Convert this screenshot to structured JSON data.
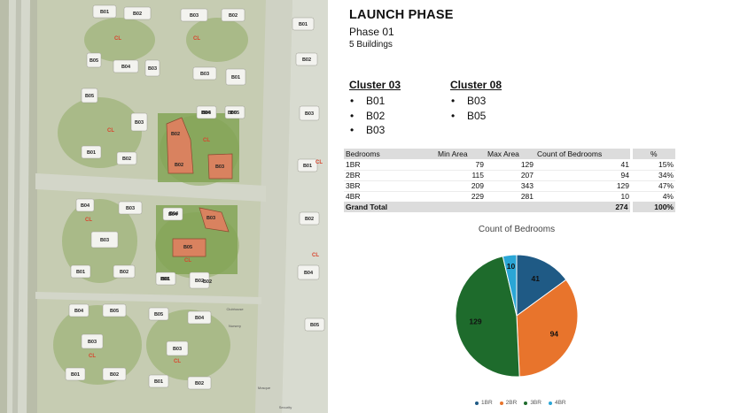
{
  "header": {
    "title": "LAUNCH PHASE",
    "phase": "Phase 01",
    "buildings": "5 Buildings"
  },
  "clusters": [
    {
      "name": "Cluster 03",
      "items": [
        "B01",
        "B02",
        "B03"
      ]
    },
    {
      "name": "Cluster 08",
      "items": [
        "B03",
        "B05"
      ]
    }
  ],
  "table": {
    "headers": [
      "Bedrooms",
      "Min Area",
      "Max Area",
      "Count of Bedrooms",
      "%"
    ],
    "rows": [
      [
        "1BR",
        "79",
        "129",
        "41",
        "15%"
      ],
      [
        "2BR",
        "115",
        "207",
        "94",
        "34%"
      ],
      [
        "3BR",
        "209",
        "343",
        "129",
        "47%"
      ],
      [
        "4BR",
        "229",
        "281",
        "10",
        "4%"
      ]
    ],
    "total": [
      "Grand Total",
      "",
      "",
      "274",
      "100%"
    ]
  },
  "map": {
    "labels": {
      "b01": "B01",
      "b02": "B02",
      "b03": "B03",
      "b04": "B04",
      "b05": "B05",
      "cl": "CL",
      "clubhouse": "Clubhouse",
      "nursery": "Nursery",
      "mosque": "Mosque",
      "security": "Security"
    }
  },
  "colors": {
    "1BR": "#1f5a85",
    "2BR": "#e8742c",
    "3BR": "#1e6b2c",
    "4BR": "#2aa6d6",
    "highlight": "#d9825f"
  },
  "chart_data": {
    "type": "pie",
    "title": "Count of Bedrooms",
    "categories": [
      "1BR",
      "2BR",
      "3BR",
      "4BR"
    ],
    "values": [
      41,
      94,
      129,
      10
    ],
    "legend": "bottom"
  }
}
